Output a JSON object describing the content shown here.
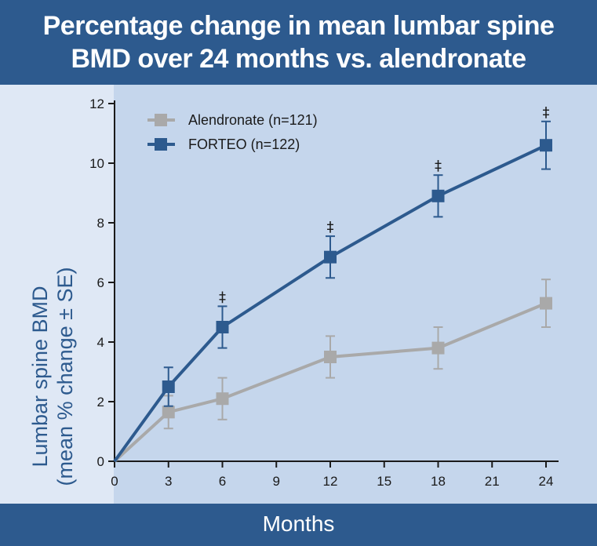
{
  "chart_data": {
    "type": "line",
    "title_lines": [
      "Percentage change in mean lumbar spine",
      "BMD over 24 months vs. alendronate"
    ],
    "xlabel": "Months",
    "ylabel_lines": [
      "Lumbar spine BMD",
      "(mean % change ± SE)"
    ],
    "x_ticks": [
      0,
      3,
      6,
      9,
      12,
      15,
      18,
      21,
      24
    ],
    "y_ticks": [
      0,
      2,
      4,
      6,
      8,
      10,
      12
    ],
    "xlim": [
      0,
      24
    ],
    "ylim": [
      0,
      12
    ],
    "grid": false,
    "legend_position": "top-left",
    "significance_marker": "‡",
    "series": [
      {
        "name": "Alendronate (n=121)",
        "color": "#a9a9a9",
        "marker": "square",
        "x": [
          0,
          3,
          6,
          12,
          18,
          24
        ],
        "values": [
          0,
          1.65,
          2.1,
          3.5,
          3.8,
          5.3
        ],
        "error": [
          null,
          0.55,
          0.7,
          0.7,
          0.7,
          0.8
        ],
        "significant": [
          false,
          false,
          false,
          false,
          false,
          false
        ]
      },
      {
        "name": "FORTEO (n=122)",
        "color": "#2d5a8e",
        "marker": "square",
        "x": [
          0,
          3,
          6,
          12,
          18,
          24
        ],
        "values": [
          0,
          2.5,
          4.5,
          6.85,
          8.9,
          10.6
        ],
        "error": [
          null,
          0.65,
          0.7,
          0.7,
          0.7,
          0.8
        ],
        "significant": [
          false,
          false,
          true,
          true,
          true,
          true
        ]
      }
    ]
  },
  "colors": {
    "banner": "#2d5a8e",
    "plot_area": "#c5d6ec",
    "outer_background": "#dfe8f5",
    "axis": "#1a1a1a",
    "ylabel": "#2d5a8e"
  }
}
